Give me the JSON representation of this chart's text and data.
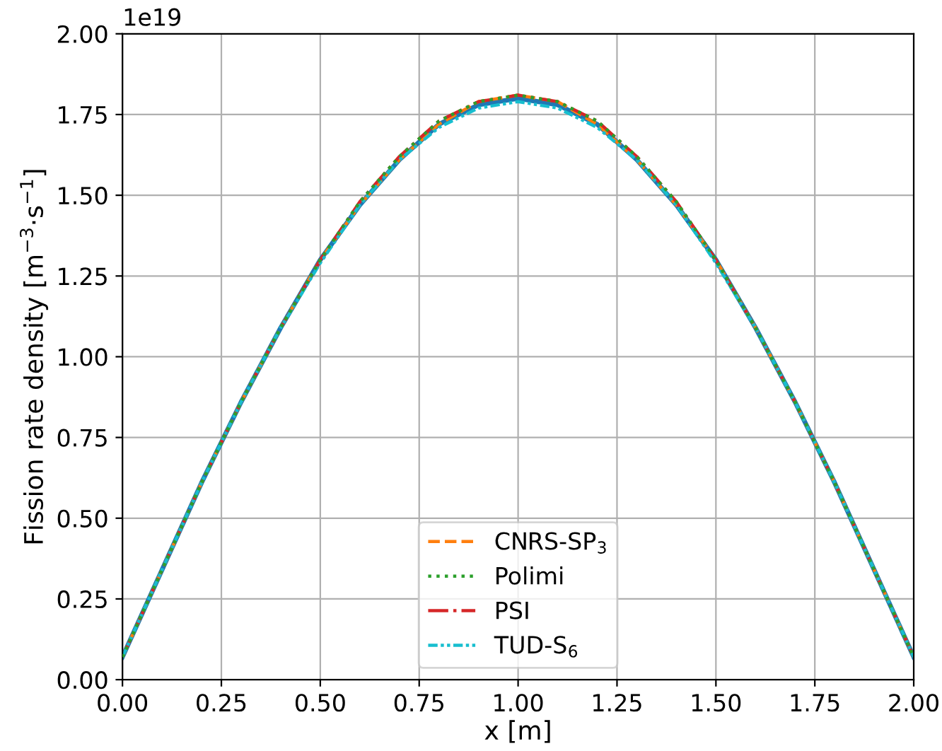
{
  "chart_data": {
    "type": "line",
    "xlabel": "x [m]",
    "ylabel": "Fission rate density [m$^{−3}$·s$^{−1}$]",
    "x": [
      0,
      0.1,
      0.2,
      0.3,
      0.4,
      0.5,
      0.6,
      0.7,
      0.8,
      0.9,
      1.0,
      1.1,
      1.2,
      1.3,
      1.4,
      1.5,
      1.6,
      1.7,
      1.8,
      1.9,
      2.0
    ],
    "series": [
      {
        "color": "#1f77b4",
        "line_style": "solid",
        "values": [
          0.07,
          0.34,
          0.61,
          0.86,
          1.09,
          1.3,
          1.47,
          1.61,
          1.72,
          1.78,
          1.8,
          1.78,
          1.72,
          1.61,
          1.47,
          1.3,
          1.09,
          0.86,
          0.61,
          0.34,
          0.07
        ]
      },
      {
        "name": "CNRS-SP$_{3}$",
        "color": "#ff7f0e",
        "line_style": "dashed",
        "values": [
          0.07,
          0.34,
          0.61,
          0.86,
          1.09,
          1.3,
          1.47,
          1.61,
          1.72,
          1.79,
          1.81,
          1.79,
          1.72,
          1.61,
          1.47,
          1.3,
          1.09,
          0.86,
          0.61,
          0.34,
          0.07
        ]
      },
      {
        "name": "Polimi",
        "color": "#2ca02c",
        "line_style": "dotted",
        "values": [
          0.07,
          0.34,
          0.61,
          0.86,
          1.09,
          1.3,
          1.48,
          1.62,
          1.73,
          1.79,
          1.81,
          1.79,
          1.73,
          1.62,
          1.48,
          1.3,
          1.09,
          0.86,
          0.61,
          0.34,
          0.07
        ]
      },
      {
        "name": "PSI",
        "color": "#d62728",
        "line_style": "dashdot",
        "values": [
          0.07,
          0.34,
          0.61,
          0.86,
          1.09,
          1.3,
          1.48,
          1.62,
          1.73,
          1.79,
          1.81,
          1.79,
          1.73,
          1.62,
          1.48,
          1.3,
          1.09,
          0.86,
          0.61,
          0.34,
          0.07
        ]
      },
      {
        "name": "TUD-S$_{6}$",
        "color": "#17becf",
        "line_style": "dashdotdot",
        "values": [
          0.07,
          0.34,
          0.61,
          0.86,
          1.09,
          1.29,
          1.47,
          1.61,
          1.71,
          1.77,
          1.79,
          1.77,
          1.71,
          1.61,
          1.47,
          1.29,
          1.09,
          0.86,
          0.61,
          0.34,
          0.07
        ]
      }
    ],
    "xlim": [
      0,
      2.0
    ],
    "xticks": [
      {
        "value": 0,
        "label": "0.00"
      },
      {
        "value": 0.25,
        "label": "0.25"
      },
      {
        "value": 0.5,
        "label": "0.50"
      },
      {
        "value": 0.75,
        "label": "0.75"
      },
      {
        "value": 1.0,
        "label": "1.00"
      },
      {
        "value": 1.25,
        "label": "1.25"
      },
      {
        "value": 1.5,
        "label": "1.50"
      },
      {
        "value": 1.75,
        "label": "1.75"
      },
      {
        "value": 2.0,
        "label": "2.00"
      }
    ],
    "ylim": [
      0,
      2.0
    ],
    "yticks": [
      {
        "value": 0,
        "label": "0.00"
      },
      {
        "value": 0.25,
        "label": "0.25"
      },
      {
        "value": 0.5,
        "label": "0.50"
      },
      {
        "value": 0.75,
        "label": "0.75"
      },
      {
        "value": 1.0,
        "label": "1.00"
      },
      {
        "value": 1.25,
        "label": "1.25"
      },
      {
        "value": 1.5,
        "label": "1.50"
      },
      {
        "value": 1.75,
        "label": "1.75"
      },
      {
        "value": 2.0,
        "label": "2.00"
      }
    ],
    "annotations": [
      "1e19"
    ],
    "grid": true,
    "legend": "bottom"
  }
}
